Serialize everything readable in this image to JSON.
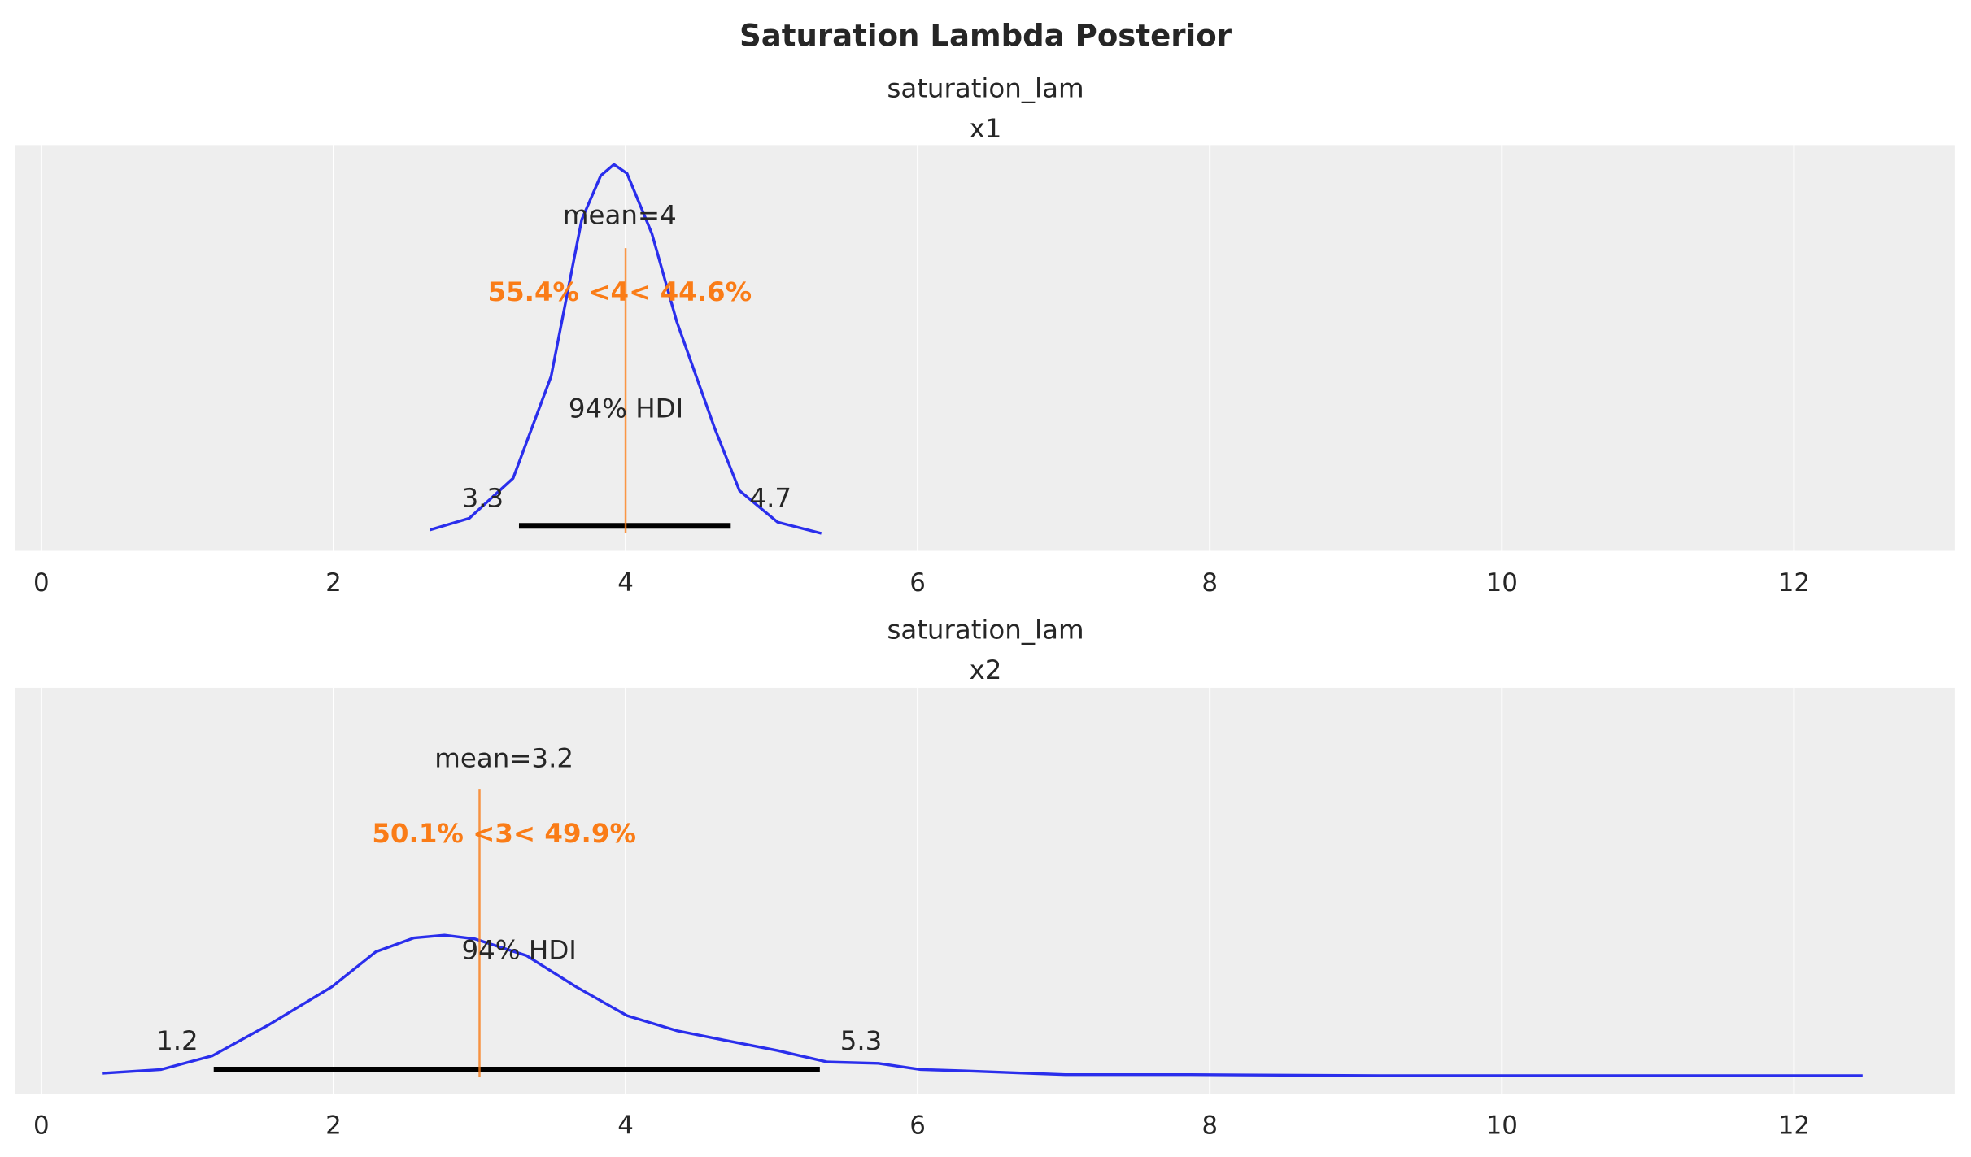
{
  "chart_data": {
    "title": "Saturation Lambda Posterior",
    "type": "line",
    "colors": {
      "density": "#2a2eec",
      "reference": "#fa7c17",
      "hdi": "#000000",
      "background": "#eeeeee",
      "grid": "#ffffff"
    },
    "panels": [
      {
        "subtitle": [
          "saturation_lam",
          "x1"
        ],
        "xlim": [
          -0.18,
          13.1
        ],
        "ylim": [
          -0.045,
          1.0
        ],
        "xticks": [
          "0",
          "2",
          "4",
          "6",
          "8",
          "10",
          "12"
        ],
        "grid": true,
        "density": [
          [
            2.66,
            0.009
          ],
          [
            2.93,
            0.039
          ],
          [
            3.23,
            0.142
          ],
          [
            3.49,
            0.404
          ],
          [
            3.7,
            0.808
          ],
          [
            3.83,
            0.921
          ],
          [
            3.92,
            0.95
          ],
          [
            4.01,
            0.927
          ],
          [
            4.18,
            0.772
          ],
          [
            4.35,
            0.546
          ],
          [
            4.61,
            0.271
          ],
          [
            4.78,
            0.11
          ],
          [
            5.04,
            0.029
          ],
          [
            5.34,
            0.0
          ]
        ],
        "mean_label": "mean=4",
        "ref_value": 4,
        "ref_label": "55.4% <4< 44.6%",
        "hdi_label": "94% HDI",
        "hdi": [
          3.27,
          4.72
        ],
        "hdi_low_label": "3.3",
        "hdi_high_label": "4.7"
      },
      {
        "subtitle": [
          "saturation_lam",
          "x2"
        ],
        "xlim": [
          -0.18,
          13.1
        ],
        "ylim": [
          -0.035,
          0.823
        ],
        "xticks": [
          "0",
          "2",
          "4",
          "6",
          "8",
          "10",
          "12"
        ],
        "grid": true,
        "density": [
          [
            0.42,
            0.008
          ],
          [
            0.82,
            0.016
          ],
          [
            1.17,
            0.045
          ],
          [
            1.56,
            0.111
          ],
          [
            1.99,
            0.191
          ],
          [
            2.29,
            0.265
          ],
          [
            2.55,
            0.294
          ],
          [
            2.76,
            0.3
          ],
          [
            2.97,
            0.292
          ],
          [
            3.32,
            0.257
          ],
          [
            3.66,
            0.191
          ],
          [
            4.01,
            0.13
          ],
          [
            4.35,
            0.098
          ],
          [
            4.69,
            0.077
          ],
          [
            5.04,
            0.056
          ],
          [
            5.38,
            0.032
          ],
          [
            5.73,
            0.029
          ],
          [
            6.02,
            0.016
          ],
          [
            6.32,
            0.013
          ],
          [
            7.01,
            0.005
          ],
          [
            7.87,
            0.005
          ],
          [
            9.16,
            0.003
          ],
          [
            12.47,
            0.003
          ]
        ],
        "mean_label": "mean=3.2",
        "ref_value": 3,
        "ref_label": "50.1% <3< 49.9%",
        "hdi_label": "94% HDI",
        "hdi": [
          1.18,
          5.33
        ],
        "hdi_low_label": "1.2",
        "hdi_high_label": "5.3"
      }
    ]
  }
}
